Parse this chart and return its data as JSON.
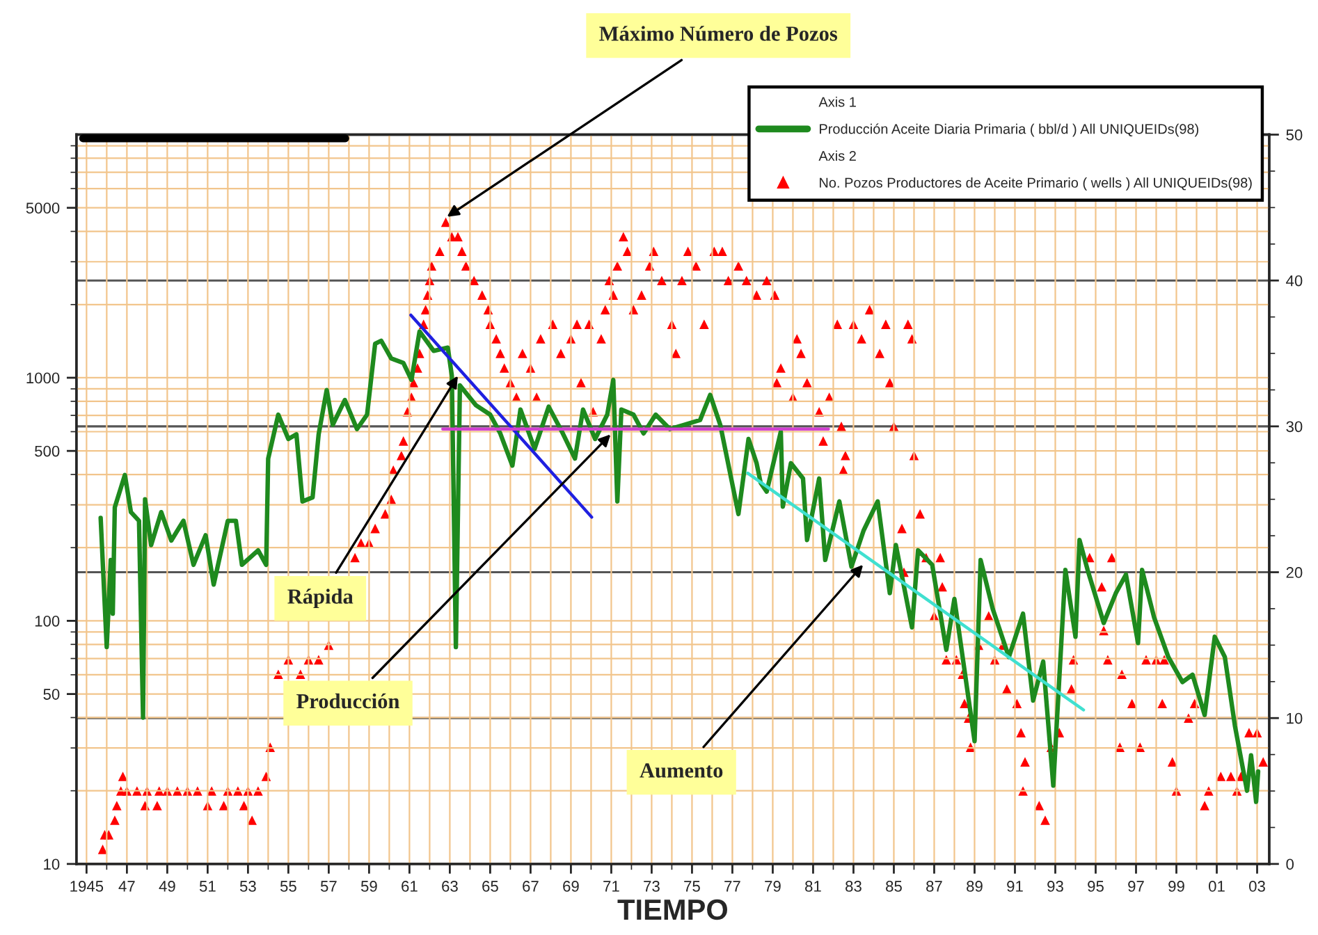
{
  "chart_data": {
    "type": "line",
    "xlabel": "TIEMPO",
    "xlim": [
      1944.5,
      2003.6
    ],
    "xticks": [
      {
        "value": 1945,
        "label": "1945"
      },
      {
        "value": 1947,
        "label": "47"
      },
      {
        "value": 1949,
        "label": "49"
      },
      {
        "value": 1951,
        "label": "51"
      },
      {
        "value": 1953,
        "label": "53"
      },
      {
        "value": 1955,
        "label": "55"
      },
      {
        "value": 1957,
        "label": "57"
      },
      {
        "value": 1959,
        "label": "59"
      },
      {
        "value": 1961,
        "label": "61"
      },
      {
        "value": 1963,
        "label": "63"
      },
      {
        "value": 1965,
        "label": "65"
      },
      {
        "value": 1967,
        "label": "67"
      },
      {
        "value": 1969,
        "label": "69"
      },
      {
        "value": 1971,
        "label": "71"
      },
      {
        "value": 1973,
        "label": "73"
      },
      {
        "value": 1975,
        "label": "75"
      },
      {
        "value": 1977,
        "label": "77"
      },
      {
        "value": 1979,
        "label": "79"
      },
      {
        "value": 1981,
        "label": "81"
      },
      {
        "value": 1983,
        "label": "83"
      },
      {
        "value": 1985,
        "label": "85"
      },
      {
        "value": 1987,
        "label": "87"
      },
      {
        "value": 1989,
        "label": "89"
      },
      {
        "value": 1991,
        "label": "91"
      },
      {
        "value": 1993,
        "label": "93"
      },
      {
        "value": 1995,
        "label": "95"
      },
      {
        "value": 1997,
        "label": "97"
      },
      {
        "value": 1999,
        "label": "99"
      },
      {
        "value": 2001,
        "label": "01"
      },
      {
        "value": 2003,
        "label": "03"
      }
    ],
    "log": "y",
    "ylim": [
      10,
      10000
    ],
    "yticks": [
      10,
      50,
      100,
      500,
      1000,
      5000
    ],
    "y2lim": [
      0,
      50
    ],
    "y2ticks": [
      0,
      10,
      20,
      30,
      40,
      50
    ],
    "grid": true,
    "legend": "top right",
    "series": [
      {
        "name": "Producción Aceite Diaria Primaria ( bbl/d ) All UNIQUEIDs(98)",
        "color": "#1e8a1e",
        "x": [
          1945.7,
          1946.0,
          1946.2,
          1946.3,
          1946.4,
          1946.9,
          1947.2,
          1947.6,
          1947.8,
          1947.9,
          1948.2,
          1948.7,
          1949.2,
          1949.8,
          1950.3,
          1950.9,
          1951.3,
          1952.0,
          1952.4,
          1952.7,
          1953.5,
          1953.9,
          1954.0,
          1954.5,
          1955.0,
          1955.4,
          1955.7,
          1956.2,
          1956.5,
          1956.9,
          1957.2,
          1957.8,
          1958.4,
          1958.9,
          1959.3,
          1959.6,
          1960.1,
          1960.7,
          1961.1,
          1961.5,
          1962.2,
          1962.9,
          1963.1,
          1963.3,
          1963.5,
          1964.3,
          1965.0,
          1965.5,
          1966.1,
          1966.5,
          1967.2,
          1967.9,
          1968.6,
          1969.2,
          1969.6,
          1970.2,
          1970.8,
          1971.1,
          1971.3,
          1971.5,
          1972.1,
          1972.6,
          1973.2,
          1973.9,
          1974.6,
          1975.4,
          1975.9,
          1976.4,
          1977.3,
          1977.8,
          1978.2,
          1978.4,
          1978.7,
          1979.4,
          1979.5,
          1979.9,
          1980.5,
          1980.7,
          1981.3,
          1981.6,
          1982.3,
          1982.9,
          1983.5,
          1984.2,
          1984.8,
          1985.1,
          1985.9,
          1986.2,
          1986.9,
          1987.6,
          1988.0,
          1989.0,
          1989.3,
          1989.9,
          1990.7,
          1991.4,
          1991.9,
          1992.4,
          1992.9,
          1993.5,
          1994.0,
          1994.2,
          1994.6,
          1995.4,
          1996.0,
          1996.5,
          1997.1,
          1997.3,
          1997.9,
          1998.6,
          1999.3,
          1999.8,
          2000.4,
          2000.9,
          2001.4,
          2001.9,
          2002.5,
          2002.7,
          2002.95,
          2003.05
        ],
        "values": [
          265,
          78,
          178,
          107,
          293,
          398,
          280,
          258,
          40,
          316,
          205,
          280,
          214,
          258,
          170,
          225,
          141,
          258,
          258,
          170,
          195,
          170,
          465,
          705,
          560,
          585,
          310,
          322,
          585,
          890,
          640,
          810,
          615,
          705,
          1380,
          1420,
          1200,
          1150,
          980,
          1550,
          1290,
          1330,
          1020,
          78,
          930,
          770,
          705,
          590,
          435,
          740,
          510,
          760,
          590,
          465,
          740,
          560,
          705,
          980,
          310,
          740,
          705,
          590,
          705,
          615,
          640,
          670,
          850,
          640,
          275,
          560,
          445,
          370,
          340,
          600,
          295,
          445,
          385,
          215,
          385,
          178,
          310,
          167,
          235,
          310,
          130,
          205,
          94,
          195,
          170,
          76,
          123,
          32,
          178,
          112,
          71,
          107,
          47,
          68,
          21,
          162,
          86,
          215,
          162,
          98,
          130,
          155,
          81,
          162,
          103,
          71,
          56,
          60,
          41,
          86,
          71,
          37,
          20,
          28,
          18,
          24
        ]
      },
      {
        "name": "No. Pozos Productores de Aceite Primario ( wells ) All UNIQUEIDs(98)",
        "type": "scatter",
        "axis": "y2",
        "marker": "triangle",
        "color": "#ff0000",
        "x": [
          1945.8,
          1945.9,
          1946.1,
          1946.4,
          1946.5,
          1946.7,
          1946.8,
          1947.0,
          1947.5,
          1947.9,
          1948.0,
          1948.5,
          1948.6,
          1949.0,
          1949.5,
          1950.0,
          1950.5,
          1951.0,
          1951.2,
          1951.8,
          1952.0,
          1952.5,
          1952.8,
          1953.0,
          1953.2,
          1953.5,
          1953.9,
          1954.1,
          1954.5,
          1955.0,
          1955.6,
          1956.0,
          1956.5,
          1957.0,
          1958.3,
          1958.6,
          1959.0,
          1959.3,
          1959.8,
          1960.1,
          1960.2,
          1960.6,
          1960.7,
          1960.9,
          1961.1,
          1961.2,
          1961.4,
          1961.5,
          1961.7,
          1961.8,
          1961.9,
          1962.0,
          1962.1,
          1962.5,
          1962.8,
          1963.1,
          1963.4,
          1963.6,
          1963.8,
          1964.2,
          1964.6,
          1964.9,
          1965.0,
          1965.3,
          1965.5,
          1965.7,
          1966.0,
          1966.3,
          1966.6,
          1967.0,
          1967.3,
          1967.5,
          1968.1,
          1968.5,
          1969.0,
          1969.3,
          1969.5,
          1969.9,
          1970.1,
          1970.5,
          1970.7,
          1970.9,
          1971.1,
          1971.3,
          1971.6,
          1971.8,
          1972.1,
          1972.5,
          1972.9,
          1973.1,
          1973.5,
          1974.0,
          1974.2,
          1974.5,
          1974.8,
          1975.2,
          1975.6,
          1976.1,
          1976.5,
          1976.8,
          1977.3,
          1977.7,
          1978.2,
          1978.7,
          1979.1,
          1979.2,
          1979.4,
          1980.0,
          1980.2,
          1980.4,
          1980.7,
          1981.3,
          1981.5,
          1981.8,
          1982.2,
          1982.4,
          1982.5,
          1982.6,
          1983.0,
          1983.4,
          1983.8,
          1984.3,
          1984.6,
          1984.8,
          1985.0,
          1985.4,
          1985.5,
          1985.7,
          1985.9,
          1986.0,
          1986.3,
          1986.6,
          1987.0,
          1987.3,
          1987.4,
          1987.6,
          1988.1,
          1988.4,
          1988.5,
          1988.7,
          1988.8,
          1989.2,
          1989.7,
          1990.0,
          1990.4,
          1990.6,
          1991.1,
          1991.3,
          1991.4,
          1991.5,
          1992.2,
          1992.5,
          1992.8,
          1993.2,
          1993.8,
          1993.9,
          1994.7,
          1995.3,
          1995.4,
          1995.6,
          1995.8,
          1996.2,
          1996.3,
          1996.8,
          1997.2,
          1997.5,
          1998.0,
          1998.3,
          1998.4,
          1998.8,
          1999.0,
          1999.6,
          1999.9,
          2000.4,
          2000.6,
          2001.2,
          2001.7,
          2002.0,
          2002.2,
          2002.6,
          2003.0,
          2003.3
        ],
        "values": [
          1,
          2,
          2,
          3,
          4,
          5,
          6,
          5,
          5,
          4,
          5,
          4,
          5,
          5,
          5,
          5,
          5,
          4,
          5,
          4,
          5,
          5,
          4,
          5,
          3,
          5,
          6,
          8,
          13,
          14,
          13,
          14,
          14,
          15,
          21,
          22,
          22,
          23,
          24,
          25,
          27,
          28,
          29,
          31,
          32,
          33,
          34,
          35,
          37,
          38,
          39,
          40,
          41,
          42,
          44,
          43,
          43,
          42,
          41,
          40,
          39,
          38,
          37,
          36,
          35,
          34,
          33,
          32,
          35,
          34,
          32,
          36,
          37,
          35,
          36,
          37,
          33,
          37,
          31,
          36,
          38,
          40,
          39,
          41,
          43,
          42,
          38,
          39,
          41,
          42,
          40,
          37,
          35,
          40,
          42,
          41,
          37,
          42,
          42,
          40,
          41,
          40,
          39,
          40,
          39,
          33,
          34,
          32,
          36,
          35,
          33,
          31,
          29,
          32,
          37,
          30,
          27,
          28,
          37,
          36,
          38,
          35,
          37,
          33,
          30,
          23,
          20,
          37,
          36,
          28,
          24,
          21,
          17,
          21,
          19,
          14,
          14,
          13,
          11,
          10,
          8,
          15,
          17,
          14,
          15,
          12,
          11,
          9,
          5,
          7,
          4,
          3,
          8,
          9,
          12,
          14,
          21,
          19,
          16,
          14,
          21,
          8,
          13,
          11,
          8,
          14,
          14,
          11,
          14,
          7,
          5,
          10,
          11,
          4,
          5,
          6,
          6,
          5,
          6,
          9,
          9,
          7
        ]
      },
      {
        "color": "#2020e0",
        "x": [
          1961.07,
          1970.03
        ],
        "values": [
          1810,
          267
        ]
      },
      {
        "color": "#d040d0",
        "x": [
          1962.65,
          1981.76
        ],
        "values": [
          615,
          615
        ]
      },
      {
        "color": "#40e0d0",
        "x": [
          1977.76,
          1994.4
        ],
        "values": [
          405,
          43
        ]
      }
    ],
    "annotations": [
      "Axis 1",
      "Axis 2",
      {
        "text": "Máximo Número de Pozos",
        "x": 1962.7,
        "y": 4500
      },
      {
        "text": "Rápida",
        "x": 1963.5,
        "y": 1050
      },
      {
        "text": "Producción",
        "x": 1971.1,
        "y": 600
      },
      {
        "text": "Aumento",
        "x": 1983.6,
        "y": 175
      }
    ]
  }
}
